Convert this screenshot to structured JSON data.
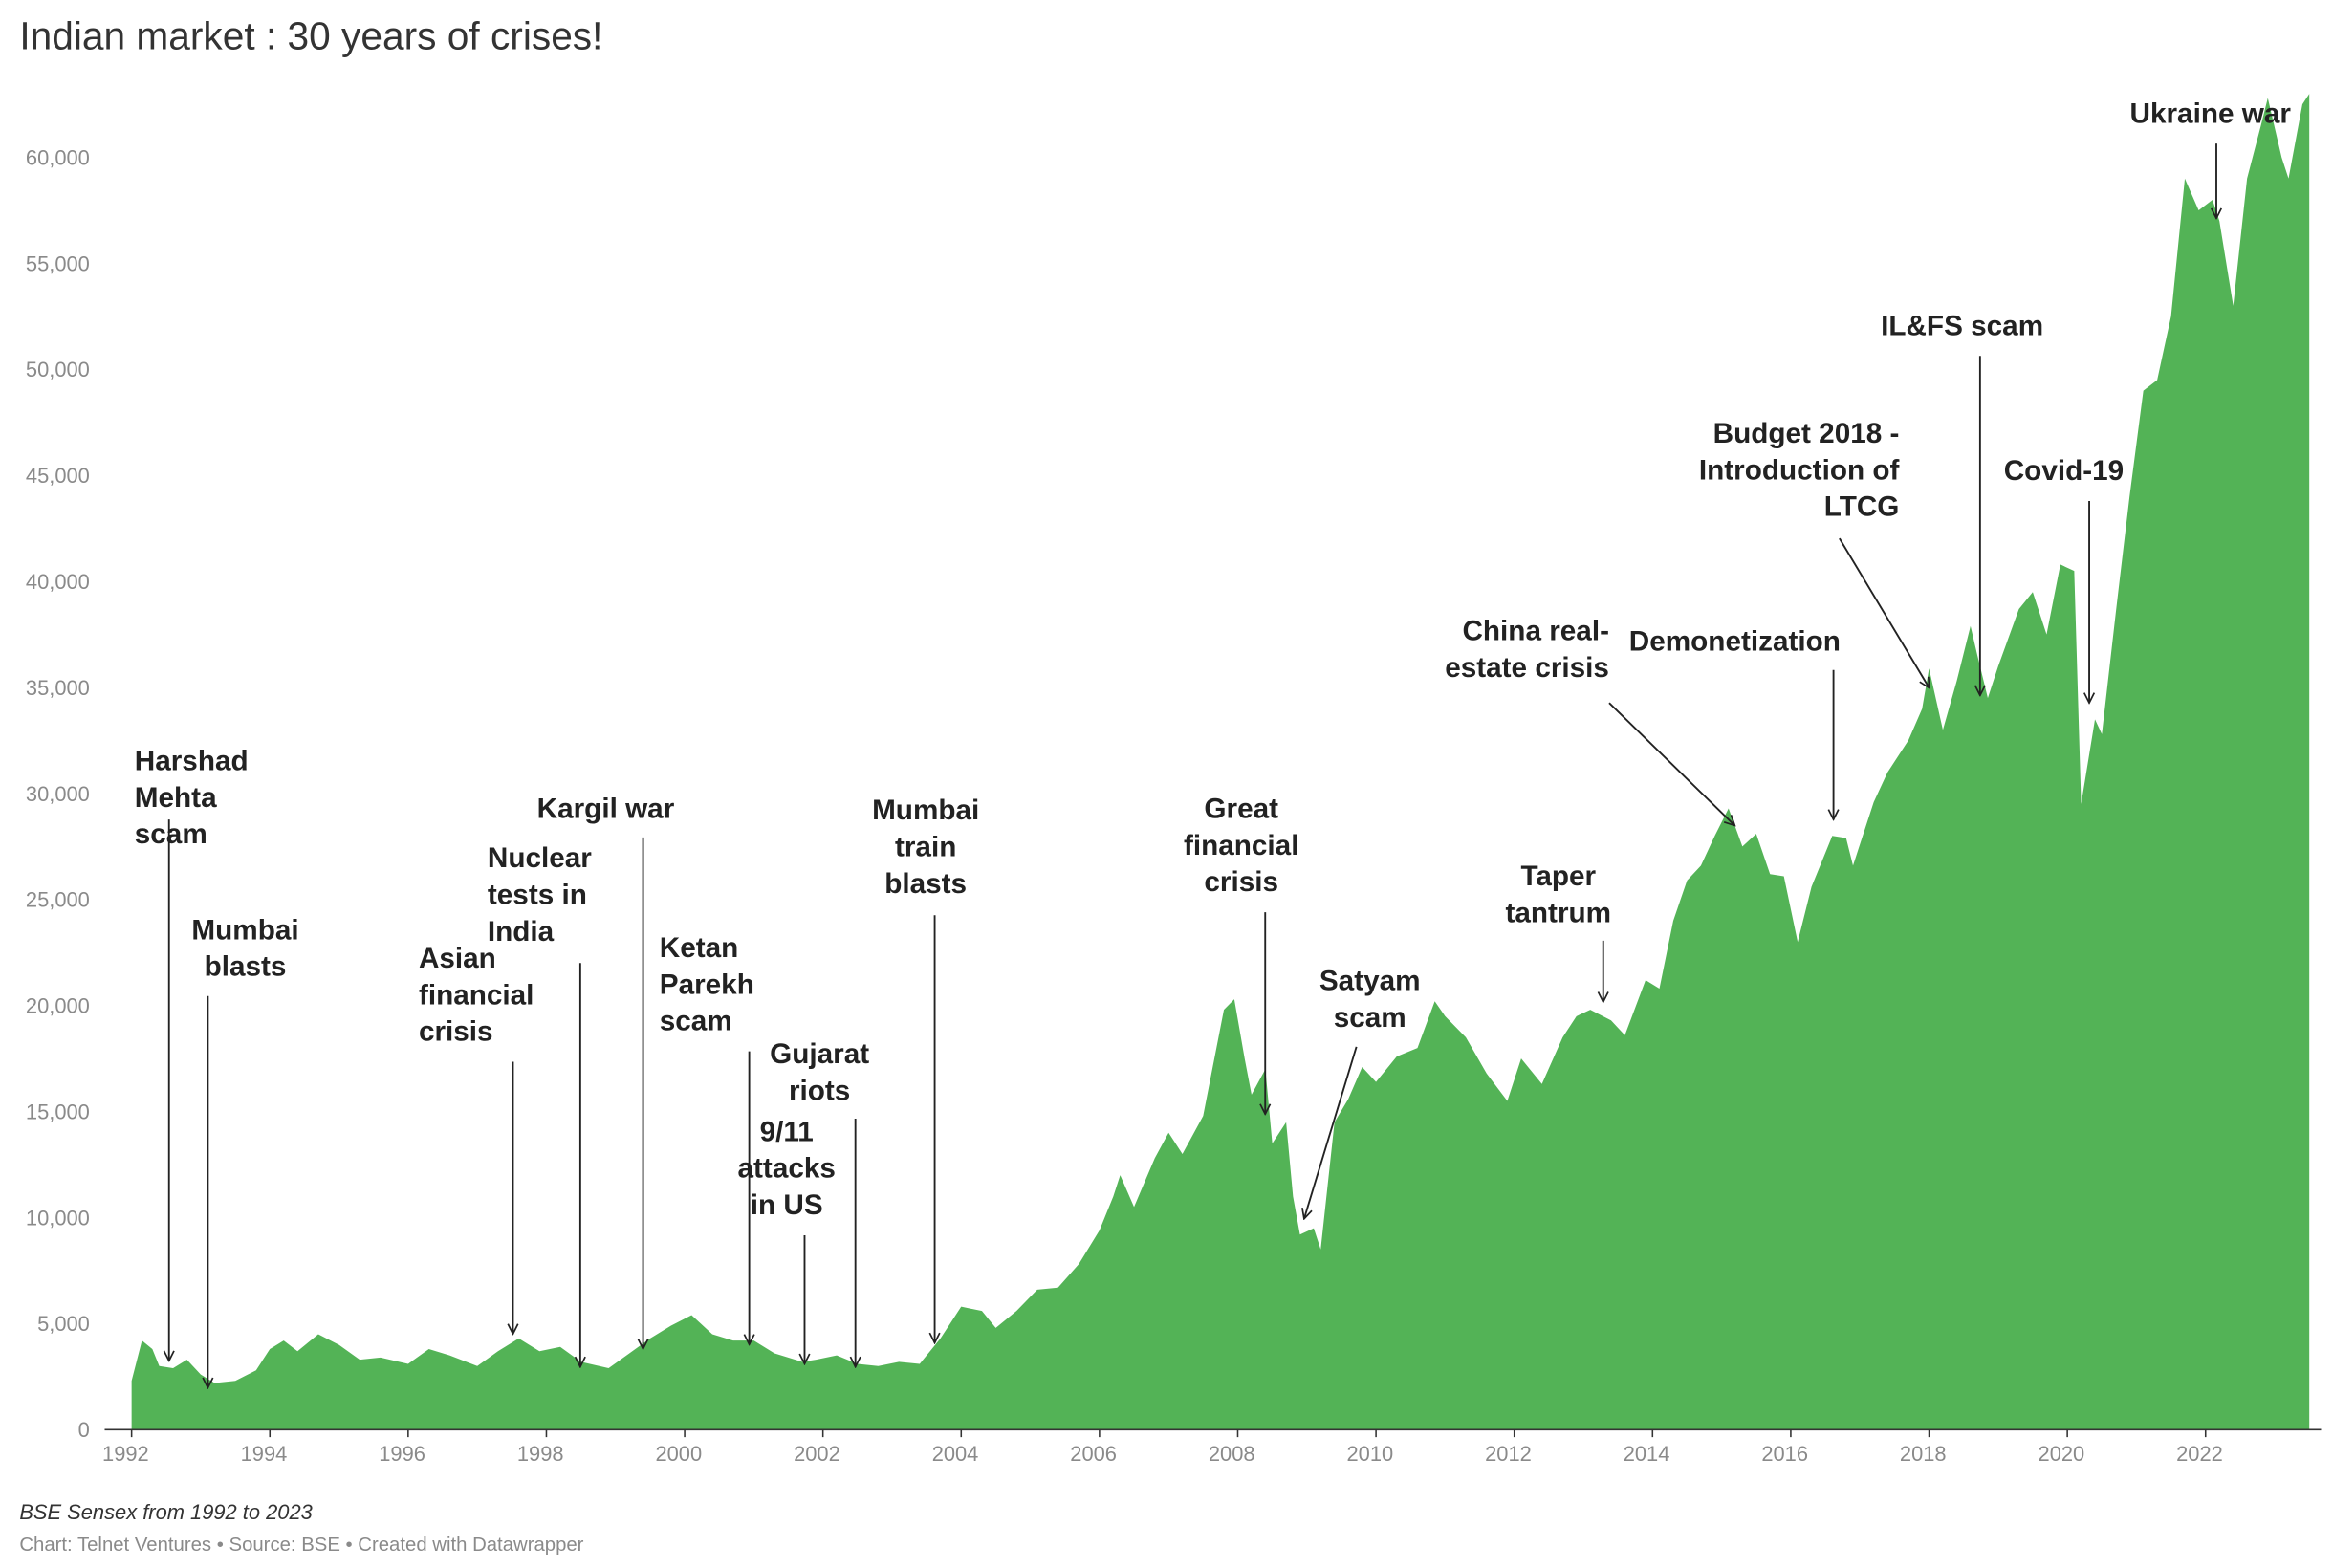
{
  "chart_data": {
    "type": "area",
    "title": "Indian market : 30 years of crises!",
    "subtitle": "BSE Sensex from 1992 to 2023",
    "source": "Chart: Telnet Ventures • Source: BSE • Created with Datawrapper",
    "color": "#53b356",
    "grid": false,
    "xlim": [
      1992,
      2023.67
    ],
    "xticks": [
      1992,
      1994,
      1996,
      1998,
      2000,
      2002,
      2004,
      2006,
      2008,
      2010,
      2012,
      2014,
      2016,
      2018,
      2020,
      2022
    ],
    "ylim": [
      0,
      63500
    ],
    "yticks": [
      0,
      {
        "value": 5000,
        "label": "5,000"
      },
      {
        "value": 10000,
        "label": "10,000"
      },
      {
        "value": 15000,
        "label": "15,000"
      },
      {
        "value": 20000,
        "label": "20,000"
      },
      {
        "value": 25000,
        "label": "25,000"
      },
      {
        "value": 30000,
        "label": "30,000"
      },
      {
        "value": 35000,
        "label": "35,000"
      },
      {
        "value": 40000,
        "label": "40,000"
      },
      {
        "value": 45000,
        "label": "45,000"
      },
      {
        "value": 50000,
        "label": "50,000"
      },
      {
        "value": 55000,
        "label": "55,000"
      },
      {
        "value": 60000,
        "label": "60,000"
      }
    ],
    "x": [
      1992.0,
      1992.15,
      1992.3,
      1992.4,
      1992.6,
      1992.8,
      1993.0,
      1993.2,
      1993.5,
      1993.8,
      1994.0,
      1994.2,
      1994.4,
      1994.7,
      1995.0,
      1995.3,
      1995.6,
      1996.0,
      1996.3,
      1996.6,
      1997.0,
      1997.3,
      1997.6,
      1997.9,
      1998.2,
      1998.5,
      1998.9,
      1999.2,
      1999.5,
      1999.8,
      2000.1,
      2000.4,
      2000.7,
      2001.0,
      2001.3,
      2001.7,
      2001.9,
      2002.2,
      2002.5,
      2002.8,
      2003.1,
      2003.4,
      2003.7,
      2004.0,
      2004.3,
      2004.5,
      2004.8,
      2005.1,
      2005.4,
      2005.7,
      2006.0,
      2006.2,
      2006.3,
      2006.5,
      2006.8,
      2007.0,
      2007.2,
      2007.5,
      2007.8,
      2007.95,
      2008.1,
      2008.2,
      2008.4,
      2008.5,
      2008.7,
      2008.8,
      2008.9,
      2009.1,
      2009.2,
      2009.4,
      2009.6,
      2009.8,
      2010.0,
      2010.3,
      2010.6,
      2010.85,
      2011.0,
      2011.3,
      2011.6,
      2011.9,
      2012.1,
      2012.4,
      2012.7,
      2012.9,
      2013.1,
      2013.4,
      2013.6,
      2013.9,
      2014.1,
      2014.3,
      2014.5,
      2014.7,
      2014.9,
      2015.1,
      2015.3,
      2015.5,
      2015.7,
      2015.9,
      2016.1,
      2016.3,
      2016.6,
      2016.8,
      2016.9,
      2017.2,
      2017.4,
      2017.7,
      2017.9,
      2018.0,
      2018.2,
      2018.4,
      2018.6,
      2018.7,
      2018.85,
      2019.0,
      2019.3,
      2019.5,
      2019.7,
      2019.9,
      2020.1,
      2020.2,
      2020.4,
      2020.5,
      2020.7,
      2020.9,
      2021.1,
      2021.3,
      2021.5,
      2021.7,
      2021.9,
      2022.1,
      2022.2,
      2022.4,
      2022.6,
      2022.8,
      2022.9,
      2023.1,
      2023.2,
      2023.4,
      2023.5
    ],
    "values": [
      2300,
      4200,
      3800,
      3000,
      2900,
      3300,
      2600,
      2200,
      2300,
      2800,
      3800,
      4200,
      3700,
      4500,
      4000,
      3300,
      3400,
      3100,
      3800,
      3500,
      3000,
      3700,
      4300,
      3700,
      3900,
      3200,
      2900,
      3600,
      4300,
      4900,
      5400,
      4500,
      4200,
      4200,
      3600,
      3200,
      3300,
      3500,
      3100,
      3000,
      3200,
      3100,
      4300,
      5800,
      5600,
      4800,
      5600,
      6600,
      6700,
      7800,
      9400,
      11000,
      12000,
      10500,
      12800,
      14000,
      13000,
      14800,
      19800,
      20300,
      17500,
      15800,
      17000,
      13500,
      14500,
      11000,
      9200,
      9500,
      8500,
      14500,
      15600,
      17100,
      16400,
      17600,
      18000,
      20200,
      19500,
      18500,
      16800,
      15500,
      17500,
      16300,
      18500,
      19500,
      19800,
      19300,
      18600,
      21200,
      20800,
      24000,
      25900,
      26600,
      28000,
      29300,
      27500,
      28100,
      26200,
      26100,
      23000,
      25600,
      28000,
      27900,
      26600,
      29600,
      31000,
      32500,
      34000,
      35900,
      33000,
      35300,
      37900,
      36500,
      34500,
      36000,
      38700,
      39500,
      37500,
      40800,
      40500,
      29500,
      33500,
      32800,
      38500,
      44000,
      49000,
      49500,
      52500,
      59000,
      57500,
      58000,
      57000,
      53000,
      59000,
      61500,
      62800,
      60000,
      59000,
      62500,
      63000
    ],
    "annotations": [
      [
        "Harshad",
        "Mehta",
        "scam"
      ],
      [
        "Mumbai",
        "blasts"
      ],
      [
        "Asian",
        "financial",
        "crisis"
      ],
      [
        "Nuclear",
        "tests in",
        "India"
      ],
      [
        "Kargil war"
      ],
      [
        "Ketan",
        "Parekh",
        "scam"
      ],
      [
        "Gujarat",
        "riots"
      ],
      [
        "9/11",
        "attacks",
        "in US"
      ],
      [
        "Mumbai",
        "train",
        "blasts"
      ],
      [
        "Great",
        "financial",
        "crisis"
      ],
      [
        "Satyam",
        "scam"
      ],
      [
        "Taper",
        "tantrum"
      ],
      [
        "China real-",
        "estate crisis"
      ],
      [
        "Demonetization"
      ],
      [
        "Budget 2018 -",
        "Introduction of",
        "LTCG"
      ],
      [
        "IL&FS scam"
      ],
      [
        "Covid-19"
      ],
      [
        "Ukraine war"
      ]
    ]
  }
}
